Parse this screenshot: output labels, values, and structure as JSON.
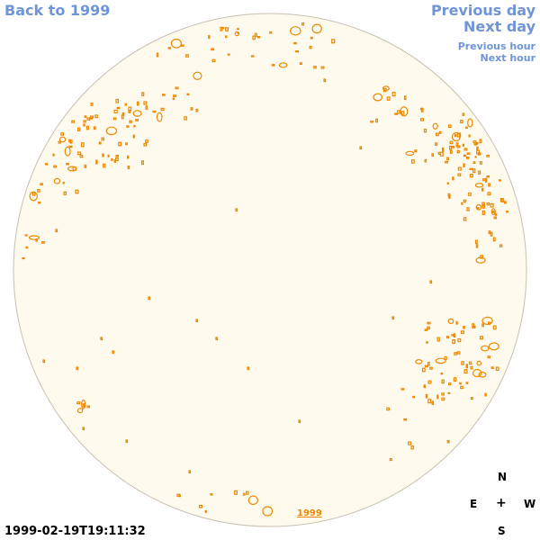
{
  "nav": {
    "back": "Back to 1999",
    "prev_day": "Previous day",
    "next_day": "Next day",
    "prev_hour": "Previous hour",
    "next_hour": "Next hour"
  },
  "footer": {
    "timestamp": "1999-02-19T19:11:32",
    "year_mark": "1999"
  },
  "compass": {
    "north": "N",
    "east": "E",
    "center": "+",
    "west": "W",
    "south": "S"
  },
  "colors": {
    "disc_fill": "#fefaee",
    "disc_stroke": "#c8c0b0",
    "contour": "#ee8800",
    "link": "#6f95d8"
  }
}
